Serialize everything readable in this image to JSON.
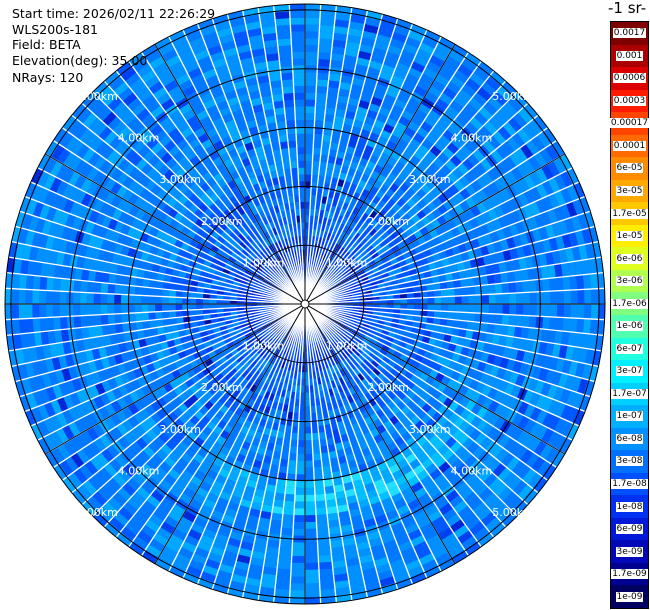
{
  "header": {
    "start_time": "Start time: 2026/02/11 22:26:29",
    "instrument": "WLS200s-181",
    "field": "Field: BETA",
    "elevation": "Elevation(deg): 35.00",
    "nrays": "NRays: 120"
  },
  "colorbar": {
    "units_label": "-1 sr-",
    "levels": [
      {
        "label": "0.0017",
        "color": "#7f0000"
      },
      {
        "label": "0.001",
        "color": "#aa0000"
      },
      {
        "label": "0.0006",
        "color": "#dd0000"
      },
      {
        "label": "0.0003",
        "color": "#ff1a00"
      },
      {
        "label": "0.00017",
        "color": "#ff4400"
      },
      {
        "label": "0.0001",
        "color": "#ff6a00"
      },
      {
        "label": "6e-05",
        "color": "#ff8c00"
      },
      {
        "label": "3e-05",
        "color": "#ffa800"
      },
      {
        "label": "1.7e-05",
        "color": "#ffc800"
      },
      {
        "label": "1e-05",
        "color": "#ffee00"
      },
      {
        "label": "6e-06",
        "color": "#e0ff20"
      },
      {
        "label": "3e-06",
        "color": "#b0ff50"
      },
      {
        "label": "1.7e-06",
        "color": "#80ff80"
      },
      {
        "label": "1e-06",
        "color": "#50ffb0"
      },
      {
        "label": "6e-07",
        "color": "#20ffe0"
      },
      {
        "label": "3e-07",
        "color": "#00f0ff"
      },
      {
        "label": "1.7e-07",
        "color": "#00d0ff"
      },
      {
        "label": "1e-07",
        "color": "#00b0ff"
      },
      {
        "label": "6e-08",
        "color": "#0090ff"
      },
      {
        "label": "3e-08",
        "color": "#0070ff"
      },
      {
        "label": "1.7e-08",
        "color": "#0050ff"
      },
      {
        "label": "1e-08",
        "color": "#0030f0"
      },
      {
        "label": "6e-09",
        "color": "#0018d8"
      },
      {
        "label": "3e-09",
        "color": "#0008b8"
      },
      {
        "label": "1.7e-09",
        "color": "#000090"
      },
      {
        "label": "1e-09",
        "color": "#000060"
      }
    ]
  },
  "ppi": {
    "ring_labels": [
      "1.00km",
      "2.00km",
      "3.00km",
      "4.00km",
      "5.00km"
    ],
    "max_range_km": 5.1,
    "label_color": "#ffffff",
    "line_color": "#000000"
  }
}
